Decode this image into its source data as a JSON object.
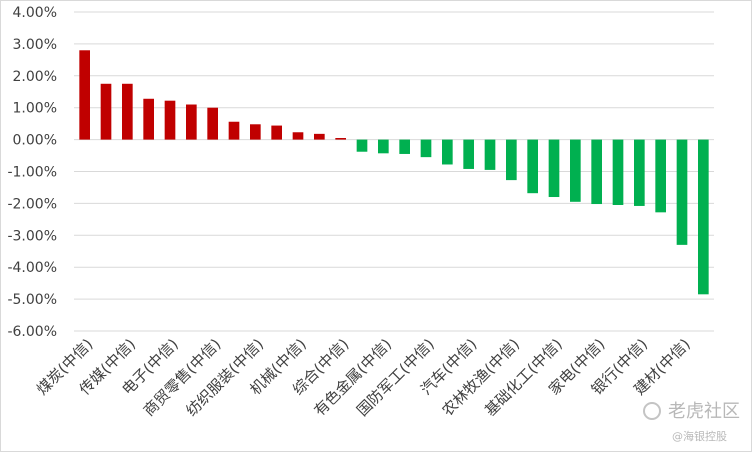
{
  "chart_data": {
    "type": "bar",
    "categories": [
      "煤炭(中信)",
      "",
      "传媒(中信)",
      "",
      "电子(中信)",
      "",
      "商贸零售(中信)",
      "",
      "纺织服装(中信)",
      "",
      "机械(中信)",
      "",
      "综合(中信)",
      "",
      "有色金属(中信)",
      "",
      "国防军工(中信)",
      "",
      "汽车(中信)",
      "",
      "农林牧渔(中信)",
      "",
      "基础化工(中信)",
      "",
      "家电(中信)",
      "",
      "银行(中信)",
      "",
      "建材(中信)",
      ""
    ],
    "values": [
      2.8,
      1.75,
      1.75,
      1.28,
      1.22,
      1.1,
      1.0,
      0.56,
      0.48,
      0.44,
      0.23,
      0.18,
      0.05,
      -0.38,
      -0.43,
      -0.45,
      -0.55,
      -0.78,
      -0.92,
      -0.95,
      -1.27,
      -1.68,
      -1.8,
      -1.95,
      -2.02,
      -2.05,
      -2.08,
      -2.28,
      -3.3,
      -4.85
    ],
    "ylim": [
      -6,
      4
    ],
    "yticks": [
      "4.00%",
      "3.00%",
      "2.00%",
      "1.00%",
      "0.00%",
      "-1.00%",
      "-2.00%",
      "-3.00%",
      "-4.00%",
      "-5.00%",
      "-6.00%"
    ],
    "grid": true,
    "colors": {
      "positive": "#c00000",
      "negative": "#00b050",
      "grid": "#d9d9d9",
      "text": "#404040"
    }
  },
  "watermark": {
    "main": "老虎社区",
    "sub": "@海银控股"
  }
}
